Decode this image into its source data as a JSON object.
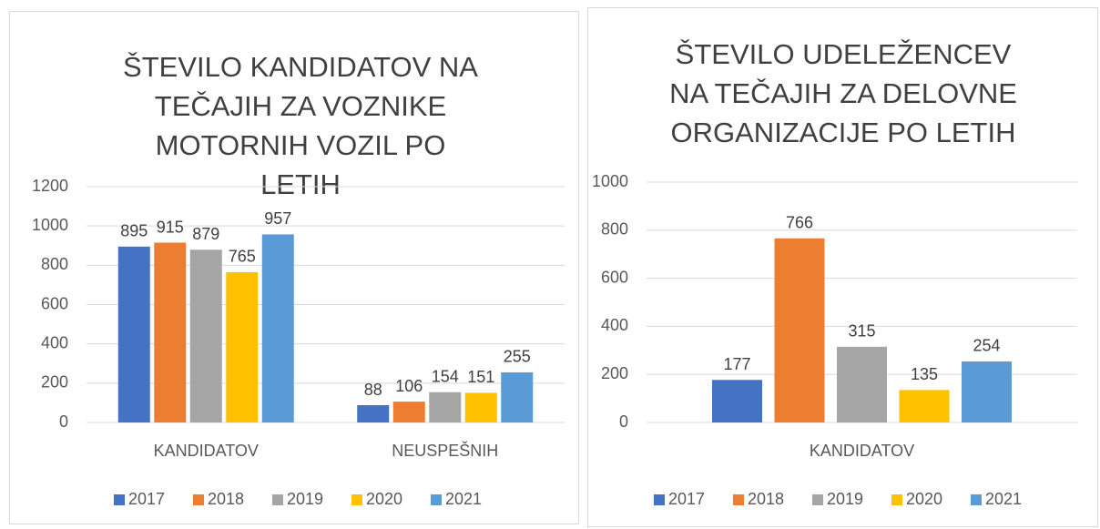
{
  "chart_data": [
    {
      "type": "bar",
      "title": "ŠTEVILO KANDIDATOV NA TEČAJIH ZA VOZNIKE MOTORNIH VOZIL PO LETIH",
      "categories": [
        "KANDIDATOV",
        "NEUSPEŠNIH"
      ],
      "series": [
        {
          "name": "2017",
          "color": "#4472c4",
          "values": [
            895,
            88
          ]
        },
        {
          "name": "2018",
          "color": "#ed7d31",
          "values": [
            915,
            106
          ]
        },
        {
          "name": "2019",
          "color": "#a5a5a5",
          "values": [
            879,
            154
          ]
        },
        {
          "name": "2020",
          "color": "#ffc000",
          "values": [
            765,
            151
          ]
        },
        {
          "name": "2021",
          "color": "#5b9bd5",
          "values": [
            957,
            255
          ]
        }
      ],
      "ylim": [
        0,
        1200
      ],
      "yticks": [
        0,
        200,
        400,
        600,
        800,
        1000,
        1200
      ],
      "grid": true,
      "legend": "bottom"
    },
    {
      "type": "bar",
      "title": "ŠTEVILO UDELEŽENCEV NA TEČAJIH ZA DELOVNE ORGANIZACIJE PO LETIH",
      "categories": [
        "KANDIDATOV"
      ],
      "series": [
        {
          "name": "2017",
          "color": "#4472c4",
          "values": [
            177
          ]
        },
        {
          "name": "2018",
          "color": "#ed7d31",
          "values": [
            766
          ]
        },
        {
          "name": "2019",
          "color": "#a5a5a5",
          "values": [
            315
          ]
        },
        {
          "name": "2020",
          "color": "#ffc000",
          "values": [
            135
          ]
        },
        {
          "name": "2021",
          "color": "#5b9bd5",
          "values": [
            254
          ]
        }
      ],
      "ylim": [
        0,
        1000
      ],
      "yticks": [
        0,
        200,
        400,
        600,
        800,
        1000
      ],
      "grid": true,
      "legend": "bottom"
    }
  ]
}
